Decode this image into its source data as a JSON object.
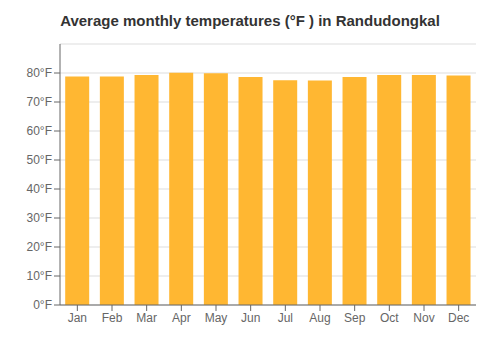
{
  "chart_data": {
    "type": "bar",
    "title": "Average monthly temperatures (°F ) in Randudongkal",
    "categories": [
      "Jan",
      "Feb",
      "Mar",
      "Apr",
      "May",
      "Jun",
      "Jul",
      "Aug",
      "Sep",
      "Oct",
      "Nov",
      "Dec"
    ],
    "values": [
      78.8,
      78.8,
      79.3,
      80.1,
      79.9,
      78.6,
      77.5,
      77.4,
      78.6,
      79.3,
      79.3,
      79.1
    ],
    "color": "#FFB732",
    "ylim": [
      0,
      90
    ],
    "yticks": [
      {
        "value": 0,
        "label": "0°F"
      },
      {
        "value": 10,
        "label": "10°F"
      },
      {
        "value": 20,
        "label": "20°F"
      },
      {
        "value": 30,
        "label": "30°F"
      },
      {
        "value": 40,
        "label": "40°F"
      },
      {
        "value": 50,
        "label": "50°F"
      },
      {
        "value": 60,
        "label": "60°F"
      },
      {
        "value": 70,
        "label": "70°F"
      },
      {
        "value": 80,
        "label": "80°F"
      }
    ],
    "grid": true
  }
}
